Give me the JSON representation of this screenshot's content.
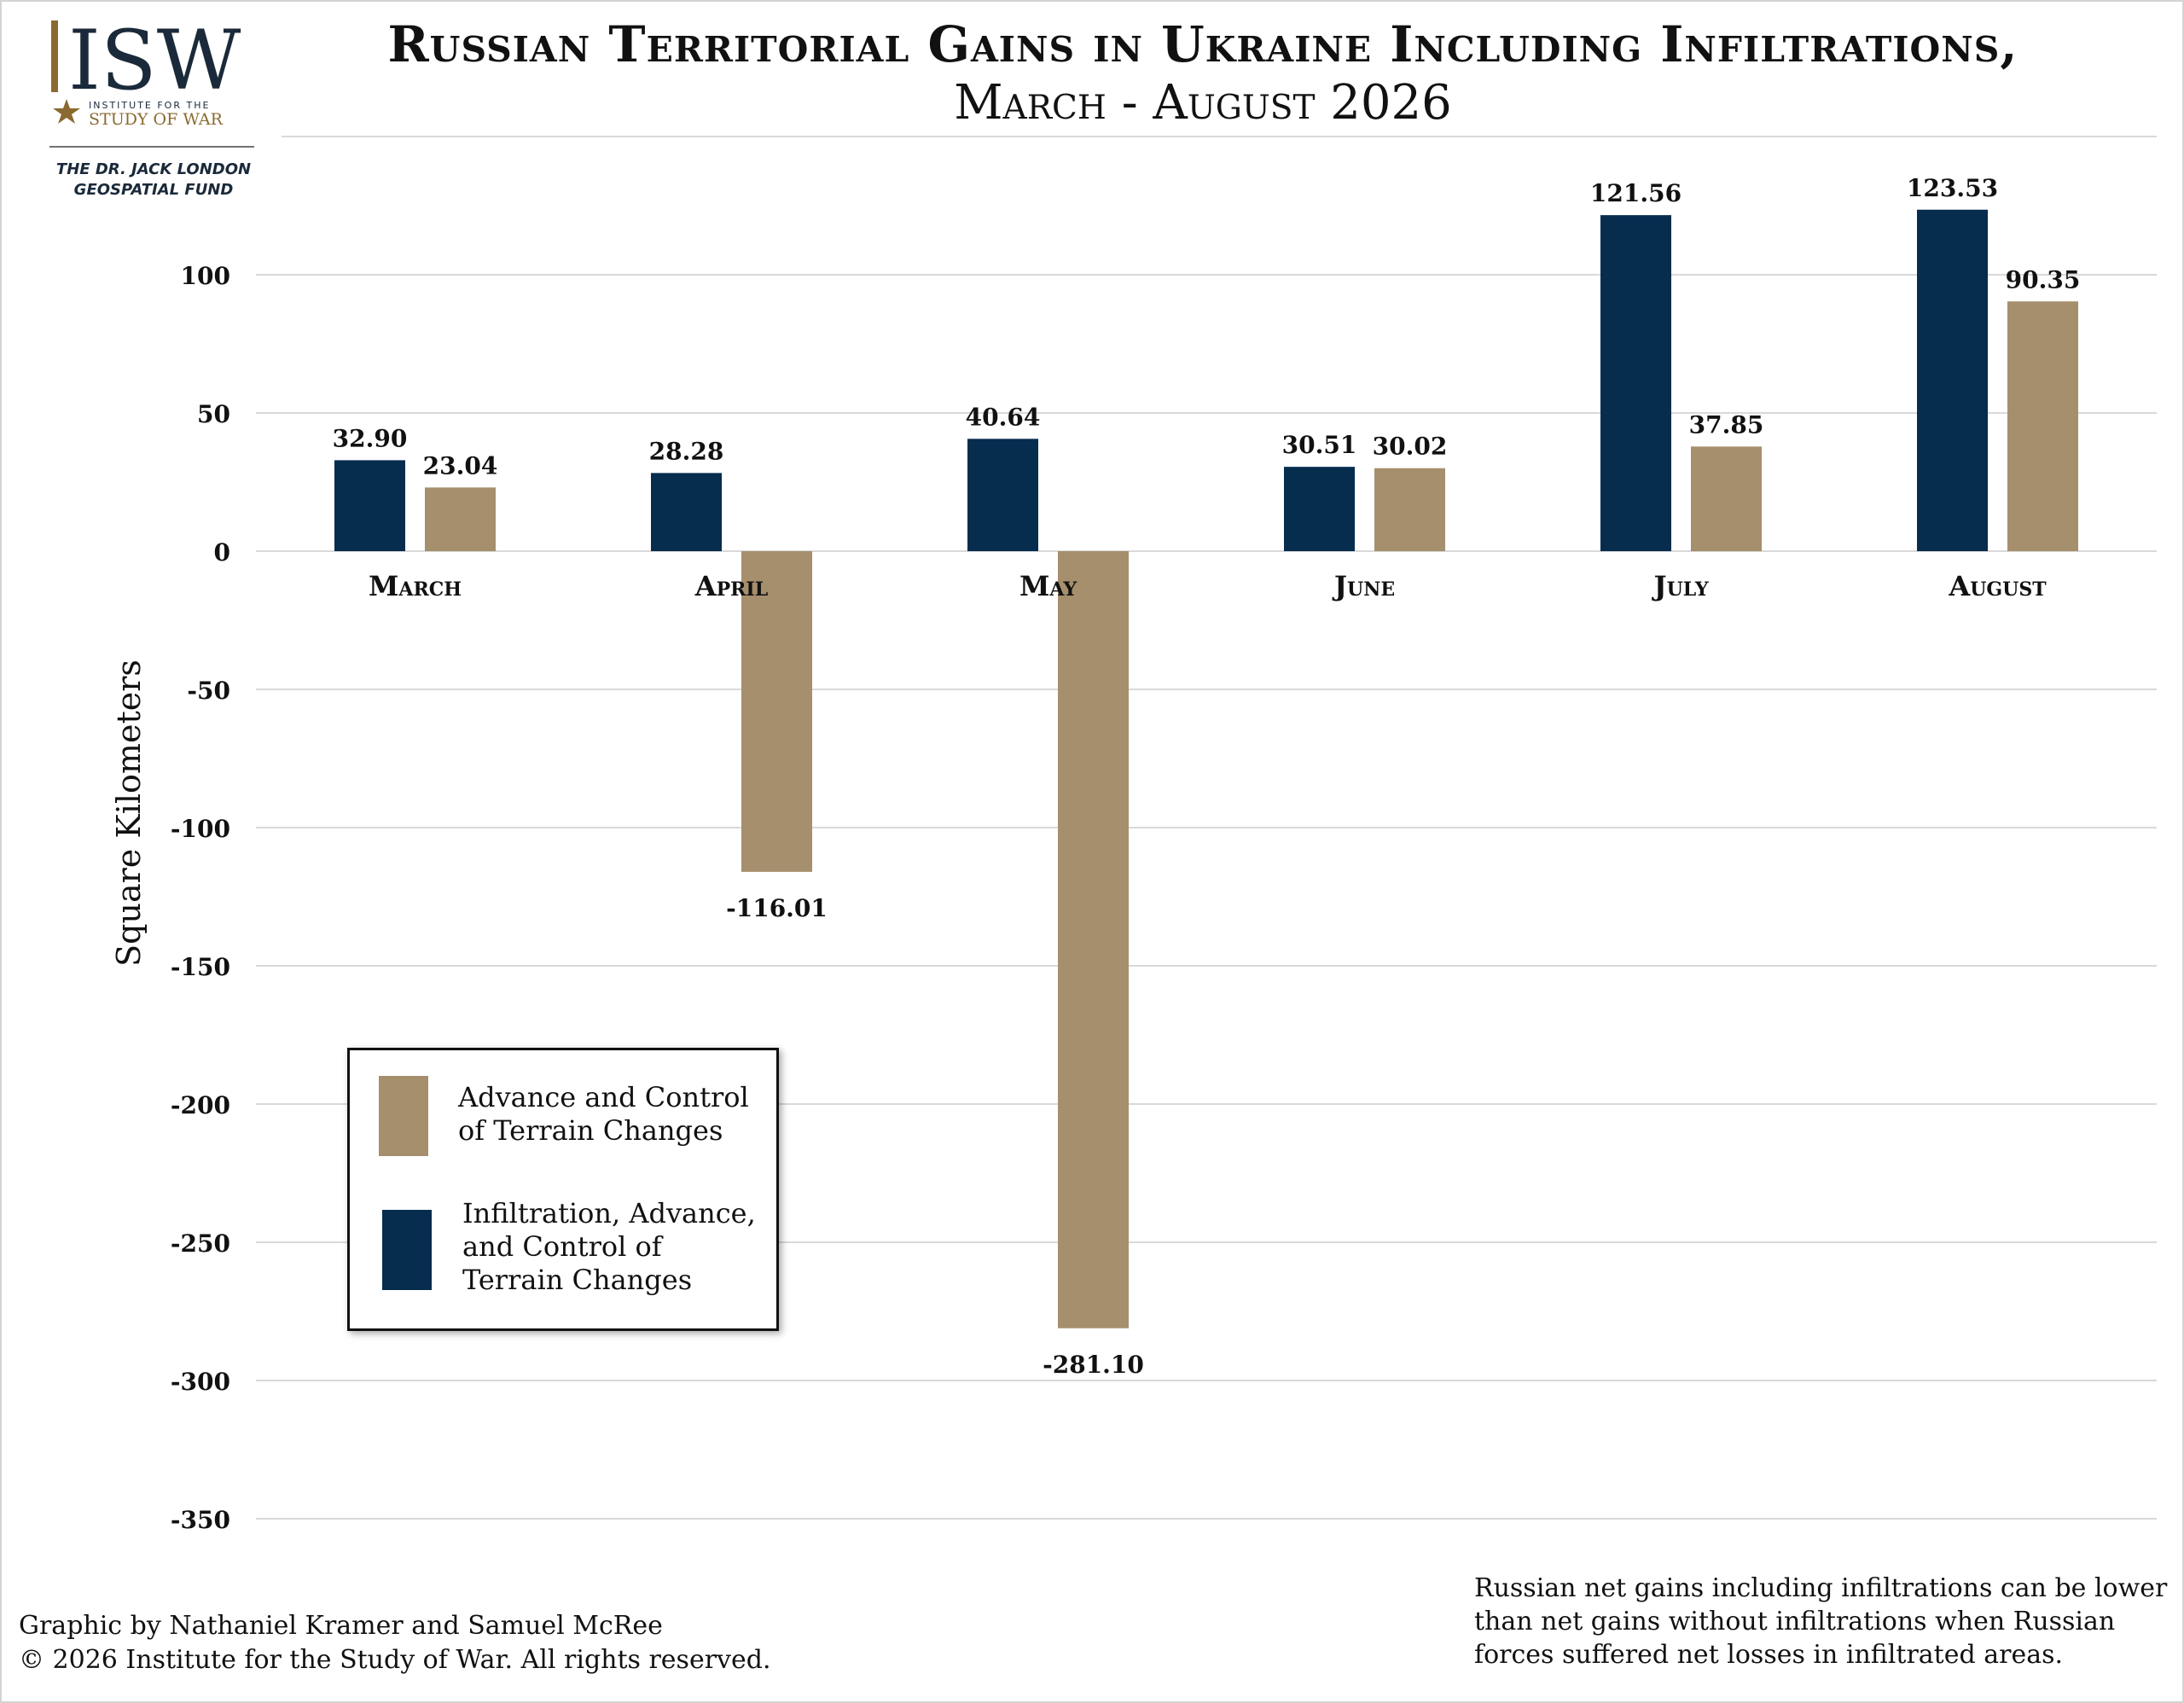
{
  "logo": {
    "letters": "ISW",
    "line1": "INSTITUTE FOR THE",
    "line2": "STUDY OF WAR",
    "fund_line1": "THE DR. JACK LONDON",
    "fund_line2": "GEOSPATIAL FUND",
    "icon": "star-icon"
  },
  "title": "Russian Territorial Gains in Ukraine Including Infiltrations,",
  "subtitle": "March - August 2026",
  "colors": {
    "navy": "#062c4e",
    "tan": "#a68f6d",
    "grid": "#d9d9d9",
    "logo_gold": "#8a6a30"
  },
  "chart_data": {
    "type": "bar",
    "categories": [
      "March",
      "April",
      "May",
      "June",
      "July",
      "August"
    ],
    "series": [
      {
        "name": "Infiltration, Advance, and Control of Terrain Changes",
        "color": "#062c4e",
        "values": [
          32.9,
          28.28,
          40.64,
          30.51,
          121.56,
          123.53
        ],
        "labels": [
          "32.90",
          "28.28",
          "40.64",
          "30.51",
          "121.56",
          "123.53"
        ]
      },
      {
        "name": "Advance and Control of Terrain Changes",
        "color": "#a68f6d",
        "values": [
          23.04,
          -116.01,
          -281.1,
          30.02,
          37.85,
          90.35
        ],
        "labels": [
          "23.04",
          "-116.01",
          "-281.10",
          "30.02",
          "37.85",
          "90.35"
        ]
      }
    ],
    "ylabel": "Square Kilometers",
    "xlabel": "",
    "ylim": [
      -350,
      150
    ],
    "yticks": [
      100,
      50,
      0,
      -50,
      -100,
      -150,
      -200,
      -250,
      -300,
      -350
    ],
    "ytick_labels": [
      "100",
      "50",
      "0",
      "-50",
      "-100",
      "-150",
      "-200",
      "-250",
      "-300",
      "-350"
    ],
    "grid": true,
    "legend_position": "bottom-left"
  },
  "legend": {
    "items": [
      {
        "label_lines": [
          "Advance and Control",
          "of Terrain Changes"
        ],
        "color": "#a68f6d"
      },
      {
        "label_lines": [
          "Infiltration, Advance,",
          "and Control of",
          "Terrain Changes"
        ],
        "color": "#062c4e"
      }
    ]
  },
  "footer": {
    "credit_line1": "Graphic by Nathaniel Kramer and Samuel McRee",
    "credit_line2": "© 2026 Institute for the Study of War. All rights reserved.",
    "note_lines": [
      "Russian net gains including infiltrations can be lower",
      "than net gains without infiltrations when Russian",
      "forces suffered net losses in infiltrated areas."
    ]
  }
}
